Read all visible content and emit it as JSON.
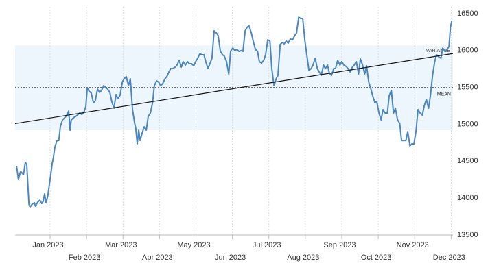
{
  "chart_data": {
    "type": "line",
    "x": [
      -0.92,
      -0.87,
      -0.81,
      -0.73,
      -0.68,
      -0.64,
      -0.58,
      -0.55,
      -0.49,
      -0.43,
      -0.4,
      -0.34,
      -0.28,
      -0.23,
      -0.19,
      -0.15,
      -0.11,
      -0.06,
      0.0,
      0.06,
      0.09,
      0.13,
      0.19,
      0.24,
      0.28,
      0.34,
      0.4,
      0.45,
      0.51,
      0.55,
      0.58,
      0.64,
      0.7,
      0.75,
      0.81,
      0.87,
      0.92,
      0.98,
      1.02,
      1.07,
      1.13,
      1.19,
      1.24,
      1.3,
      1.36,
      1.41,
      1.47,
      1.53,
      1.58,
      1.64,
      1.69,
      1.75,
      1.81,
      1.86,
      1.92,
      1.98,
      2.03,
      2.09,
      2.15,
      2.2,
      2.26,
      2.32,
      2.35,
      2.39,
      2.43,
      2.47,
      2.52,
      2.58,
      2.64,
      2.69,
      2.75,
      2.81,
      2.86,
      2.92,
      2.98,
      3.03,
      3.09,
      3.15,
      3.2,
      3.26,
      3.31,
      3.37,
      3.43,
      3.48,
      3.54,
      3.6,
      3.65,
      3.71,
      3.77,
      3.82,
      3.88,
      3.94,
      3.99,
      4.05,
      4.11,
      4.16,
      4.22,
      4.27,
      4.33,
      4.39,
      4.44,
      4.5,
      4.56,
      4.61,
      4.67,
      4.73,
      4.78,
      4.84,
      4.9,
      4.95,
      5.01,
      5.07,
      5.12,
      5.18,
      5.24,
      5.29,
      5.35,
      5.4,
      5.46,
      5.52,
      5.57,
      5.63,
      5.69,
      5.74,
      5.8,
      5.86,
      5.91,
      5.97,
      6.03,
      6.08,
      6.14,
      6.2,
      6.25,
      6.31,
      6.37,
      6.42,
      6.48,
      6.53,
      6.59,
      6.65,
      6.7,
      6.76,
      6.82,
      6.87,
      6.93,
      6.99,
      7.04,
      7.1,
      7.16,
      7.21,
      7.27,
      7.33,
      7.38,
      7.44,
      7.5,
      7.55,
      7.61,
      7.66,
      7.72,
      7.78,
      7.83,
      7.89,
      7.95,
      8.0,
      8.06,
      8.12,
      8.17,
      8.23,
      8.29,
      8.34,
      8.4,
      8.46,
      8.51,
      8.57,
      8.63,
      8.68,
      8.74,
      8.79,
      8.85,
      8.91,
      8.96,
      9.02,
      9.08,
      9.13,
      9.19,
      9.25,
      9.3,
      9.36,
      9.42,
      9.47,
      9.53,
      9.59,
      9.64,
      9.7,
      9.76,
      9.81,
      9.87,
      9.92,
      9.98,
      10.04,
      10.09,
      10.15,
      10.21,
      10.26,
      10.32,
      10.38,
      10.43,
      10.49,
      10.55,
      10.6,
      10.66,
      10.72,
      10.77,
      10.83,
      10.89,
      10.94,
      10.98,
      11.02
    ],
    "series": [
      {
        "color": "#4a86c0",
        "values": [
          14438,
          14252,
          14364,
          14317,
          14484,
          14456,
          13918,
          13880,
          13918,
          13936,
          13890,
          13945,
          13973,
          13927,
          13955,
          14057,
          13936,
          14038,
          14252,
          14475,
          14549,
          14689,
          14781,
          14781,
          14967,
          15060,
          15088,
          15116,
          15181,
          14921,
          15060,
          15088,
          15107,
          15125,
          15153,
          15135,
          15153,
          15246,
          15497,
          15450,
          15423,
          15292,
          15320,
          15478,
          15432,
          15460,
          15525,
          15497,
          15478,
          15432,
          15311,
          15218,
          15404,
          15348,
          15395,
          15571,
          15618,
          15646,
          15525,
          15618,
          15200,
          15014,
          14949,
          14735,
          14921,
          14781,
          14874,
          14967,
          14921,
          15107,
          15153,
          15292,
          15525,
          15590,
          15571,
          15525,
          15553,
          15618,
          15646,
          15711,
          15757,
          15757,
          15776,
          15803,
          15868,
          15776,
          15850,
          15803,
          15850,
          15822,
          15822,
          15794,
          15850,
          15896,
          15961,
          15943,
          15943,
          15850,
          15757,
          15831,
          15896,
          16268,
          16240,
          16203,
          15989,
          15943,
          15924,
          15850,
          15683,
          15989,
          16036,
          15999,
          16017,
          15989,
          15999,
          15989,
          16268,
          16314,
          16333,
          16240,
          16129,
          16017,
          15989,
          15850,
          15831,
          15868,
          15943,
          16147,
          16129,
          15757,
          15525,
          15618,
          15664,
          16082,
          16110,
          16091,
          16129,
          16101,
          16156,
          16147,
          16194,
          16240,
          16454,
          16435,
          16435,
          16129,
          15943,
          15729,
          15757,
          15803,
          15896,
          15757,
          15711,
          15664,
          15803,
          15757,
          15803,
          15692,
          15664,
          15757,
          15757,
          15868,
          15803,
          15850,
          15803,
          15785,
          15757,
          15711,
          15776,
          15803,
          15850,
          15683,
          15887,
          15803,
          15683,
          15794,
          15571,
          15497,
          15385,
          15292,
          15311,
          15153,
          15060,
          15200,
          15153,
          15153,
          15385,
          15460,
          15153,
          15218,
          15060,
          15014,
          14781,
          14781,
          14781,
          14902,
          14707,
          14735,
          14735,
          14921,
          15200,
          15153,
          15125,
          15246,
          15339,
          15218,
          15385,
          15664,
          15850,
          15943,
          15915,
          15896,
          16036,
          15989,
          16017,
          16054,
          16314,
          16407
        ]
      }
    ],
    "xlim": [
      -0.96,
      11.05
    ],
    "xticks": [
      {
        "value": 0,
        "label": "Jan 2023"
      },
      {
        "value": 1,
        "label": "Feb 2023"
      },
      {
        "value": 2,
        "label": "Mar 2023"
      },
      {
        "value": 3,
        "label": "Apr 2023"
      },
      {
        "value": 4,
        "label": "May 2023"
      },
      {
        "value": 5,
        "label": "Jun 2023"
      },
      {
        "value": 6,
        "label": "Jul 2023"
      },
      {
        "value": 7,
        "label": "Aug 2023"
      },
      {
        "value": 8,
        "label": "Sep 2023"
      },
      {
        "value": 9,
        "label": "Oct 2023"
      },
      {
        "value": 10,
        "label": "Nov 2023"
      },
      {
        "value": 11,
        "label": "Dec 2023"
      }
    ],
    "ylim": [
      13500,
      16500
    ],
    "yticks": [
      13500,
      14000,
      14500,
      15000,
      15500,
      16000,
      16500
    ],
    "mean": 15500,
    "mean_label": "MEAN",
    "variance_band": [
      14920,
      16070
    ],
    "variance_label": "VARIANCE",
    "trend": {
      "x": [
        -0.96,
        11.05
      ],
      "y": [
        15010,
        15960
      ]
    }
  }
}
